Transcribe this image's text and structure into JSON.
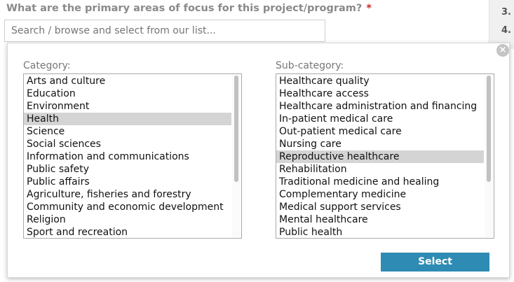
{
  "question": {
    "text": "What are the primary areas of focus for this project/program?",
    "required_mark": "*"
  },
  "search": {
    "placeholder": "Search / browse and select from our list..."
  },
  "right_rail": {
    "items": [
      "3.",
      "4."
    ]
  },
  "dialog": {
    "close_label": "×",
    "category": {
      "label": "Category:",
      "items": [
        "Arts and culture",
        "Education",
        "Environment",
        "Health",
        "Science",
        "Social sciences",
        "Information and communications",
        "Public safety",
        "Public affairs",
        "Agriculture, fisheries and forestry",
        "Community and economic development",
        "Religion",
        "Sport and recreation"
      ],
      "selected": "Health"
    },
    "subcategory": {
      "label": "Sub-category:",
      "items": [
        "Healthcare quality",
        "Healthcare access",
        "Healthcare administration and financing",
        "In-patient medical care",
        "Out-patient medical care",
        "Nursing care",
        "Reproductive healthcare",
        "Rehabilitation",
        "Traditional medicine and healing",
        "Complementary medicine",
        "Medical support services",
        "Mental healthcare",
        "Public health"
      ],
      "selected": "Reproductive healthcare"
    },
    "select_label": "Select"
  },
  "colors": {
    "accent": "#2e8bb3",
    "required": "#c8281e",
    "selected_row": "#d4d4d4"
  }
}
